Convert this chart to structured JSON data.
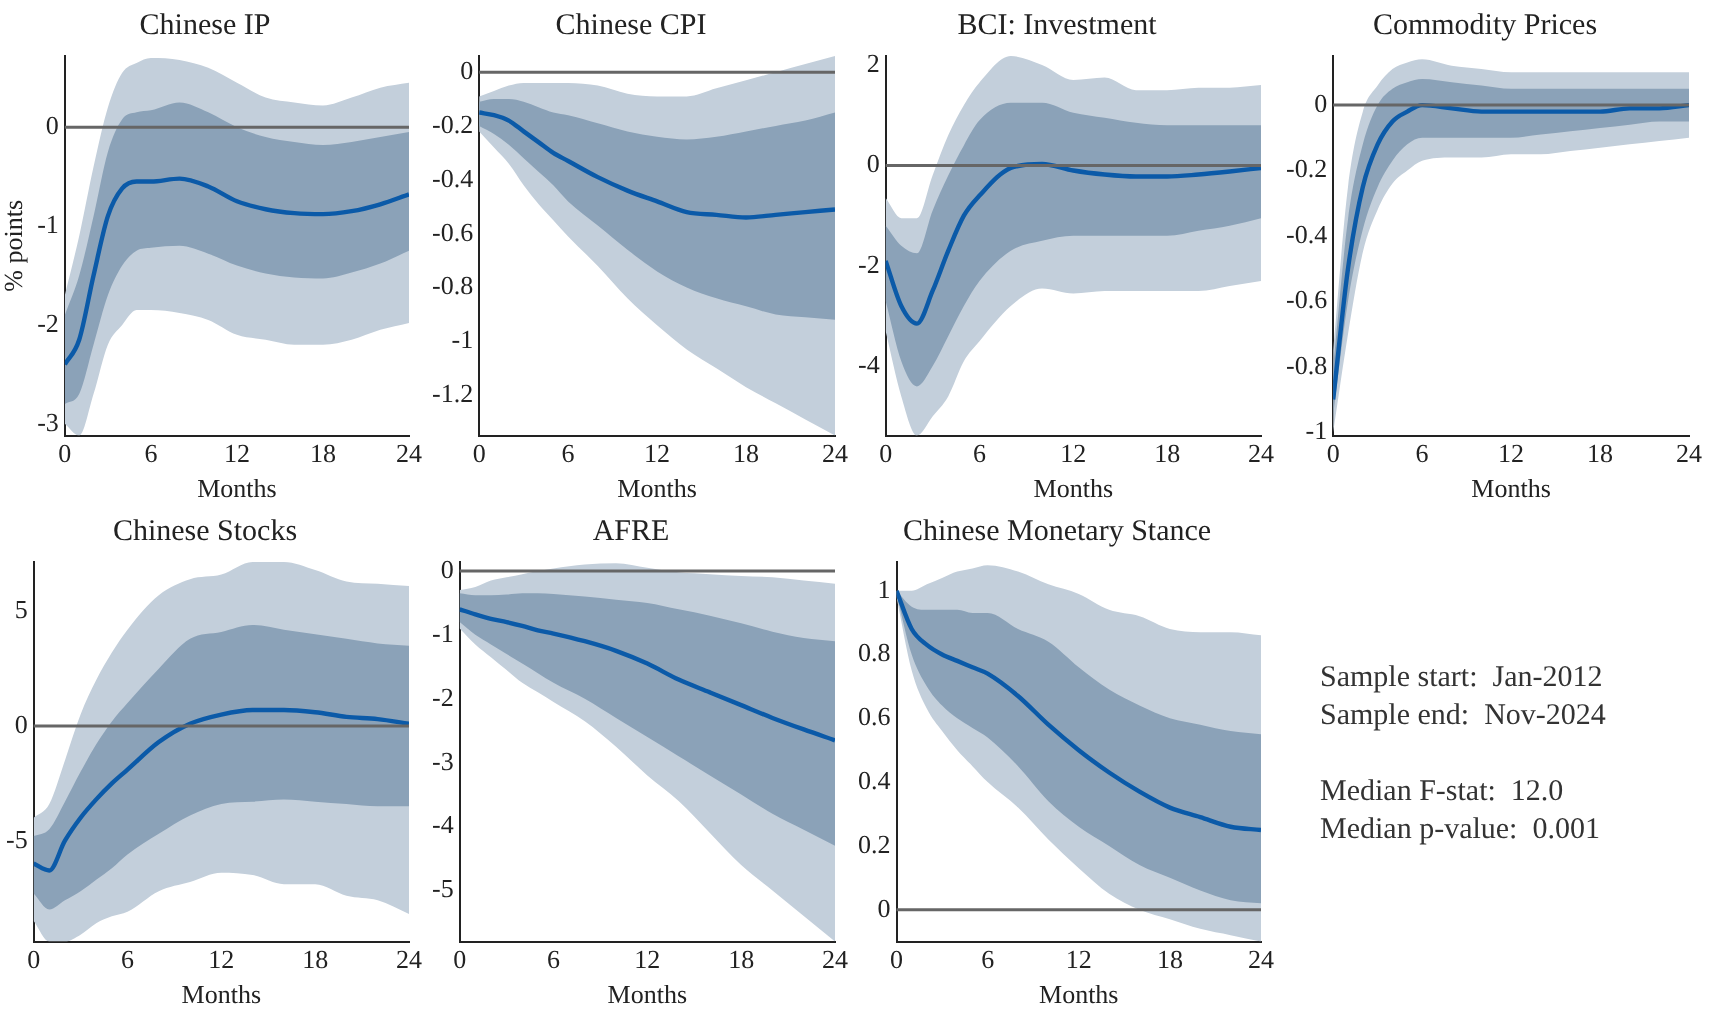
{
  "chart_data": [
    {
      "type": "line",
      "title": "Chinese IP",
      "xlabel": "Months",
      "ylabel": "% points",
      "x": [
        0,
        1,
        2,
        3,
        4,
        5,
        6,
        8,
        10,
        12,
        14,
        16,
        18,
        20,
        22,
        24
      ],
      "xlim": [
        0,
        24
      ],
      "xticks": [
        0,
        6,
        12,
        18,
        24
      ],
      "ylim": [
        -3.12,
        0.72
      ],
      "yticks": [
        -3,
        -2,
        -1,
        0
      ],
      "ref_lines": [
        {
          "axis": "y",
          "value": 0,
          "color": "#666666"
        }
      ],
      "series": [
        {
          "type": "area",
          "color": "#c3cfdb",
          "values": [
            null,
            null,
            null,
            null,
            null,
            null,
            null,
            null,
            null,
            null,
            null,
            null,
            null,
            null,
            null,
            null
          ],
          "lower": [
            -3.0,
            -3.12,
            -2.7,
            -2.2,
            -2.0,
            -1.85,
            -1.85,
            -1.88,
            -1.95,
            -2.1,
            -2.15,
            -2.2,
            -2.2,
            -2.15,
            -2.05,
            -1.98
          ],
          "upper": [
            -1.7,
            -1.1,
            -0.4,
            0.2,
            0.55,
            0.65,
            0.7,
            0.68,
            0.6,
            0.45,
            0.3,
            0.25,
            0.22,
            0.3,
            0.4,
            0.45
          ]
        },
        {
          "type": "area",
          "color": "#8ba2b8",
          "values": [
            null,
            null,
            null,
            null,
            null,
            null,
            null,
            null,
            null,
            null,
            null,
            null,
            null,
            null,
            null,
            null
          ],
          "lower": [
            -2.8,
            -2.7,
            -2.2,
            -1.7,
            -1.4,
            -1.25,
            -1.22,
            -1.2,
            -1.28,
            -1.4,
            -1.48,
            -1.52,
            -1.53,
            -1.47,
            -1.38,
            -1.25
          ],
          "upper": [
            -1.9,
            -1.5,
            -0.9,
            -0.25,
            0.08,
            0.15,
            0.17,
            0.25,
            0.15,
            0.0,
            -0.1,
            -0.15,
            -0.18,
            -0.15,
            -0.1,
            -0.05
          ]
        },
        {
          "color": "#0b5aa8",
          "values": [
            -2.4,
            -2.15,
            -1.5,
            -0.9,
            -0.62,
            -0.55,
            -0.55,
            -0.52,
            -0.6,
            -0.75,
            -0.83,
            -0.87,
            -0.88,
            -0.85,
            -0.78,
            -0.68
          ]
        }
      ]
    },
    {
      "type": "line",
      "title": "Chinese CPI",
      "xlabel": "Months",
      "x": [
        0,
        1,
        2,
        3,
        4,
        5,
        6,
        8,
        10,
        12,
        14,
        16,
        18,
        20,
        22,
        24
      ],
      "xlim": [
        0,
        24
      ],
      "xticks": [
        0,
        6,
        12,
        18,
        24
      ],
      "ylim": [
        -1.35,
        0.06
      ],
      "yticks": [
        -1.2,
        -1,
        -0.8,
        -0.6,
        -0.4,
        -0.2,
        0
      ],
      "ref_lines": [
        {
          "axis": "y",
          "value": 0,
          "color": "#666666"
        }
      ],
      "series": [
        {
          "type": "area",
          "color": "#c3cfdb",
          "values": [
            null,
            null,
            null,
            null,
            null,
            null,
            null,
            null,
            null,
            null,
            null,
            null,
            null,
            null,
            null,
            null
          ],
          "lower": [
            -0.22,
            -0.28,
            -0.34,
            -0.42,
            -0.49,
            -0.55,
            -0.61,
            -0.72,
            -0.84,
            -0.94,
            -1.03,
            -1.1,
            -1.17,
            -1.23,
            -1.29,
            -1.35
          ],
          "upper": [
            -0.09,
            -0.07,
            -0.05,
            -0.04,
            -0.04,
            -0.04,
            -0.04,
            -0.05,
            -0.08,
            -0.09,
            -0.09,
            -0.06,
            -0.03,
            0.0,
            0.03,
            0.06
          ]
        },
        {
          "type": "area",
          "color": "#8ba2b8",
          "values": [
            null,
            null,
            null,
            null,
            null,
            null,
            null,
            null,
            null,
            null,
            null,
            null,
            null,
            null,
            null,
            null
          ],
          "lower": [
            -0.2,
            -0.23,
            -0.27,
            -0.32,
            -0.37,
            -0.42,
            -0.48,
            -0.57,
            -0.66,
            -0.74,
            -0.8,
            -0.84,
            -0.87,
            -0.9,
            -0.91,
            -0.92
          ],
          "upper": [
            -0.11,
            -0.1,
            -0.1,
            -0.11,
            -0.13,
            -0.15,
            -0.16,
            -0.19,
            -0.22,
            -0.24,
            -0.25,
            -0.24,
            -0.22,
            -0.2,
            -0.18,
            -0.15
          ]
        },
        {
          "color": "#0b5aa8",
          "values": [
            -0.15,
            -0.16,
            -0.18,
            -0.22,
            -0.26,
            -0.3,
            -0.33,
            -0.39,
            -0.44,
            -0.48,
            -0.52,
            -0.53,
            -0.54,
            -0.53,
            -0.52,
            -0.51
          ]
        }
      ]
    },
    {
      "type": "line",
      "title": "BCI: Investment",
      "xlabel": "Months",
      "x": [
        0,
        1,
        2,
        3,
        4,
        5,
        6,
        8,
        10,
        12,
        14,
        16,
        18,
        20,
        22,
        24
      ],
      "xlim": [
        0,
        24
      ],
      "xticks": [
        0,
        6,
        12,
        18,
        24
      ],
      "ylim": [
        -5.38,
        2.18
      ],
      "yticks": [
        -4,
        -2,
        0,
        2
      ],
      "ref_lines": [
        {
          "axis": "y",
          "value": 0,
          "color": "#666666"
        }
      ],
      "series": [
        {
          "type": "area",
          "color": "#c3cfdb",
          "values": [
            null,
            null,
            null,
            null,
            null,
            null,
            null,
            null,
            null,
            null,
            null,
            null,
            null,
            null,
            null,
            null
          ],
          "lower": [
            -3.3,
            -4.6,
            -5.38,
            -5.0,
            -4.6,
            -3.9,
            -3.5,
            -2.8,
            -2.45,
            -2.55,
            -2.5,
            -2.5,
            -2.5,
            -2.5,
            -2.4,
            -2.3
          ],
          "upper": [
            -0.65,
            -1.05,
            -1.05,
            -0.2,
            0.6,
            1.2,
            1.65,
            2.18,
            2.0,
            1.7,
            1.75,
            1.5,
            1.5,
            1.55,
            1.55,
            1.6
          ]
        },
        {
          "type": "area",
          "color": "#8ba2b8",
          "values": [
            null,
            null,
            null,
            null,
            null,
            null,
            null,
            null,
            null,
            null,
            null,
            null,
            null,
            null,
            null,
            null
          ],
          "lower": [
            -2.7,
            -3.9,
            -4.4,
            -4.0,
            -3.4,
            -2.8,
            -2.3,
            -1.7,
            -1.5,
            -1.4,
            -1.4,
            -1.4,
            -1.4,
            -1.3,
            -1.2,
            -1.05
          ],
          "upper": [
            -1.2,
            -1.6,
            -1.75,
            -0.9,
            -0.2,
            0.4,
            0.9,
            1.25,
            1.25,
            1.05,
            0.95,
            0.85,
            0.8,
            0.8,
            0.8,
            0.8
          ]
        },
        {
          "color": "#0b5aa8",
          "values": [
            -1.9,
            -2.8,
            -3.15,
            -2.5,
            -1.7,
            -1.0,
            -0.6,
            -0.05,
            0.03,
            -0.1,
            -0.18,
            -0.22,
            -0.22,
            -0.18,
            -0.12,
            -0.05
          ]
        }
      ]
    },
    {
      "type": "line",
      "title": "Commodity Prices",
      "xlabel": "Months",
      "x": [
        0,
        1,
        2,
        3,
        4,
        5,
        6,
        8,
        10,
        12,
        14,
        16,
        18,
        20,
        22,
        24
      ],
      "xlim": [
        0,
        24
      ],
      "xticks": [
        0,
        6,
        12,
        18,
        24
      ],
      "ylim": [
        -1.01,
        0.15
      ],
      "yticks": [
        -1,
        -0.8,
        -0.6,
        -0.4,
        -0.2,
        0
      ],
      "ref_lines": [
        {
          "axis": "y",
          "value": 0,
          "color": "#666666"
        }
      ],
      "series": [
        {
          "type": "area",
          "color": "#c3cfdb",
          "values": [
            null,
            null,
            null,
            null,
            null,
            null,
            null,
            null,
            null,
            null,
            null,
            null,
            null,
            null,
            null,
            null
          ],
          "lower": [
            -1.0,
            -0.7,
            -0.45,
            -0.32,
            -0.24,
            -0.2,
            -0.17,
            -0.16,
            -0.16,
            -0.15,
            -0.15,
            -0.14,
            -0.13,
            -0.12,
            -0.11,
            -0.1
          ],
          "upper": [
            -0.75,
            -0.25,
            -0.02,
            0.06,
            0.11,
            0.13,
            0.14,
            0.12,
            0.11,
            0.1,
            0.1,
            0.1,
            0.1,
            0.1,
            0.1,
            0.1
          ]
        },
        {
          "type": "area",
          "color": "#8ba2b8",
          "values": [
            null,
            null,
            null,
            null,
            null,
            null,
            null,
            null,
            null,
            null,
            null,
            null,
            null,
            null,
            null,
            null
          ],
          "lower": [
            -0.95,
            -0.6,
            -0.38,
            -0.25,
            -0.17,
            -0.12,
            -0.1,
            -0.1,
            -0.1,
            -0.1,
            -0.09,
            -0.08,
            -0.07,
            -0.06,
            -0.05,
            -0.05
          ],
          "upper": [
            -0.8,
            -0.35,
            -0.12,
            0.0,
            0.05,
            0.07,
            0.08,
            0.07,
            0.06,
            0.05,
            0.05,
            0.05,
            0.05,
            0.05,
            0.05,
            0.05
          ]
        },
        {
          "color": "#0b5aa8",
          "values": [
            -0.9,
            -0.5,
            -0.25,
            -0.12,
            -0.05,
            -0.02,
            0,
            -0.01,
            -0.02,
            -0.02,
            -0.02,
            -0.02,
            -0.02,
            -0.01,
            -0.01,
            0
          ]
        }
      ]
    },
    {
      "type": "line",
      "title": "Chinese Stocks",
      "xlabel": "Months",
      "x": [
        0,
        1,
        2,
        3,
        4,
        5,
        6,
        8,
        10,
        12,
        14,
        16,
        18,
        20,
        22,
        24
      ],
      "xlim": [
        0,
        24
      ],
      "xticks": [
        0,
        6,
        12,
        18,
        24
      ],
      "ylim": [
        -9.4,
        7.15
      ],
      "yticks": [
        -5,
        0,
        5
      ],
      "ref_lines": [
        {
          "axis": "y",
          "value": 0,
          "color": "#666666"
        }
      ],
      "series": [
        {
          "type": "area",
          "color": "#c3cfdb",
          "values": [
            null,
            null,
            null,
            null,
            null,
            null,
            null,
            null,
            null,
            null,
            null,
            null,
            null,
            null,
            null,
            null
          ],
          "lower": [
            -8.5,
            -9.4,
            -9.4,
            -9.1,
            -8.6,
            -8.3,
            -8.1,
            -7.2,
            -6.8,
            -6.4,
            -6.5,
            -6.9,
            -6.9,
            -7.4,
            -7.6,
            -8.2
          ],
          "upper": [
            -4.0,
            -3.4,
            -1.5,
            0.5,
            2.0,
            3.2,
            4.2,
            5.7,
            6.4,
            6.6,
            7.15,
            7.15,
            6.8,
            6.3,
            6.2,
            6.1
          ]
        },
        {
          "type": "area",
          "color": "#8ba2b8",
          "values": [
            null,
            null,
            null,
            null,
            null,
            null,
            null,
            null,
            null,
            null,
            null,
            null,
            null,
            null,
            null,
            null
          ],
          "lower": [
            -7.3,
            -8.0,
            -7.6,
            -7.2,
            -6.7,
            -6.2,
            -5.6,
            -4.7,
            -3.9,
            -3.4,
            -3.3,
            -3.2,
            -3.3,
            -3.4,
            -3.5,
            -3.5
          ],
          "upper": [
            -4.8,
            -4.5,
            -3.3,
            -2.0,
            -0.8,
            0.2,
            1.0,
            2.5,
            3.8,
            4.1,
            4.4,
            4.2,
            4.0,
            3.8,
            3.6,
            3.5
          ]
        },
        {
          "color": "#0b5aa8",
          "values": [
            -6.0,
            -6.3,
            -5.0,
            -4.0,
            -3.2,
            -2.5,
            -1.9,
            -0.7,
            0.1,
            0.5,
            0.7,
            0.7,
            0.6,
            0.4,
            0.3,
            0.1
          ]
        }
      ]
    },
    {
      "type": "line",
      "title": "AFRE",
      "xlabel": "Months",
      "x": [
        0,
        1,
        2,
        3,
        4,
        5,
        6,
        8,
        10,
        12,
        14,
        16,
        18,
        20,
        22,
        24
      ],
      "xlim": [
        0,
        24
      ],
      "xticks": [
        0,
        6,
        12,
        18,
        24
      ],
      "ylim": [
        -5.8,
        0.14
      ],
      "yticks": [
        -5,
        -4,
        -3,
        -2,
        -1,
        0
      ],
      "ref_lines": [
        {
          "axis": "y",
          "value": 0,
          "color": "#666666"
        }
      ],
      "series": [
        {
          "type": "area",
          "color": "#c3cfdb",
          "values": [
            null,
            null,
            null,
            null,
            null,
            null,
            null,
            null,
            null,
            null,
            null,
            null,
            null,
            null,
            null,
            null
          ],
          "lower": [
            -0.9,
            -1.15,
            -1.35,
            -1.55,
            -1.75,
            -1.9,
            -2.05,
            -2.35,
            -2.75,
            -3.2,
            -3.6,
            -4.1,
            -4.6,
            -5.0,
            -5.4,
            -5.8
          ],
          "upper": [
            -0.3,
            -0.25,
            -0.15,
            -0.1,
            -0.05,
            0.0,
            0.04,
            0.1,
            0.12,
            0.05,
            -0.02,
            -0.05,
            -0.08,
            -0.1,
            -0.15,
            -0.2
          ]
        },
        {
          "type": "area",
          "color": "#8ba2b8",
          "values": [
            null,
            null,
            null,
            null,
            null,
            null,
            null,
            null,
            null,
            null,
            null,
            null,
            null,
            null,
            null,
            null
          ],
          "lower": [
            -0.8,
            -1.0,
            -1.15,
            -1.3,
            -1.45,
            -1.6,
            -1.75,
            -2.0,
            -2.3,
            -2.6,
            -2.9,
            -3.2,
            -3.5,
            -3.8,
            -4.05,
            -4.3
          ],
          "upper": [
            -0.35,
            -0.38,
            -0.38,
            -0.37,
            -0.35,
            -0.35,
            -0.36,
            -0.4,
            -0.45,
            -0.5,
            -0.6,
            -0.7,
            -0.82,
            -0.95,
            -1.05,
            -1.1
          ]
        },
        {
          "color": "#0b5aa8",
          "values": [
            -0.6,
            -0.68,
            -0.75,
            -0.8,
            -0.86,
            -0.93,
            -0.98,
            -1.1,
            -1.25,
            -1.45,
            -1.7,
            -1.9,
            -2.1,
            -2.3,
            -2.48,
            -2.65
          ]
        }
      ]
    },
    {
      "type": "line",
      "title": "Chinese Monetary Stance",
      "xlabel": "Months",
      "x": [
        0,
        1,
        2,
        3,
        4,
        5,
        6,
        8,
        10,
        12,
        14,
        16,
        18,
        20,
        22,
        24
      ],
      "xlim": [
        0,
        24
      ],
      "xticks": [
        0,
        6,
        12,
        18,
        24
      ],
      "ylim": [
        -0.1,
        1.09
      ],
      "yticks": [
        0,
        0.2,
        0.4,
        0.6,
        0.8,
        1
      ],
      "ref_lines": [
        {
          "axis": "y",
          "value": 0,
          "color": "#666666"
        }
      ],
      "series": [
        {
          "type": "area",
          "color": "#c3cfdb",
          "values": [
            null,
            null,
            null,
            null,
            null,
            null,
            null,
            null,
            null,
            null,
            null,
            null,
            null,
            null,
            null,
            null
          ],
          "lower": [
            0.98,
            0.75,
            0.63,
            0.56,
            0.5,
            0.45,
            0.4,
            0.32,
            0.22,
            0.13,
            0.05,
            0.0,
            -0.03,
            -0.06,
            -0.08,
            -0.1
          ],
          "upper": [
            1.0,
            1.0,
            1.02,
            1.04,
            1.06,
            1.07,
            1.08,
            1.06,
            1.02,
            0.99,
            0.94,
            0.92,
            0.88,
            0.87,
            0.87,
            0.86
          ]
        },
        {
          "type": "area",
          "color": "#8ba2b8",
          "values": [
            null,
            null,
            null,
            null,
            null,
            null,
            null,
            null,
            null,
            null,
            null,
            null,
            null,
            null,
            null,
            null
          ],
          "lower": [
            0.99,
            0.8,
            0.7,
            0.64,
            0.6,
            0.57,
            0.54,
            0.45,
            0.34,
            0.26,
            0.2,
            0.14,
            0.1,
            0.06,
            0.03,
            0.02
          ],
          "upper": [
            1.0,
            0.95,
            0.94,
            0.94,
            0.94,
            0.93,
            0.93,
            0.88,
            0.84,
            0.76,
            0.69,
            0.64,
            0.6,
            0.58,
            0.56,
            0.55
          ]
        },
        {
          "color": "#0b5aa8",
          "values": [
            1.0,
            0.88,
            0.83,
            0.8,
            0.78,
            0.76,
            0.74,
            0.67,
            0.58,
            0.5,
            0.43,
            0.37,
            0.32,
            0.29,
            0.26,
            0.25
          ]
        }
      ]
    },
    {
      "type": "other",
      "annotations": [
        "Sample start:  Jan-2012",
        "Sample end:  Nov-2024",
        "Median F-stat:  12.0",
        "Median p-value:  0.001"
      ]
    }
  ]
}
